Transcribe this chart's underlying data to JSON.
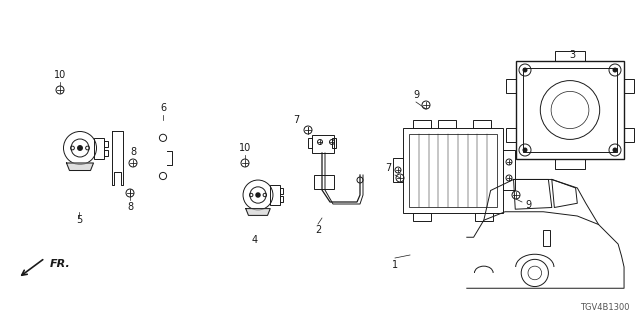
{
  "diagram_code": "TGV4B1300",
  "background_color": "#ffffff",
  "line_color": "#1a1a1a",
  "fig_width": 6.4,
  "fig_height": 3.2,
  "dpi": 100,
  "fr_label": "FR."
}
